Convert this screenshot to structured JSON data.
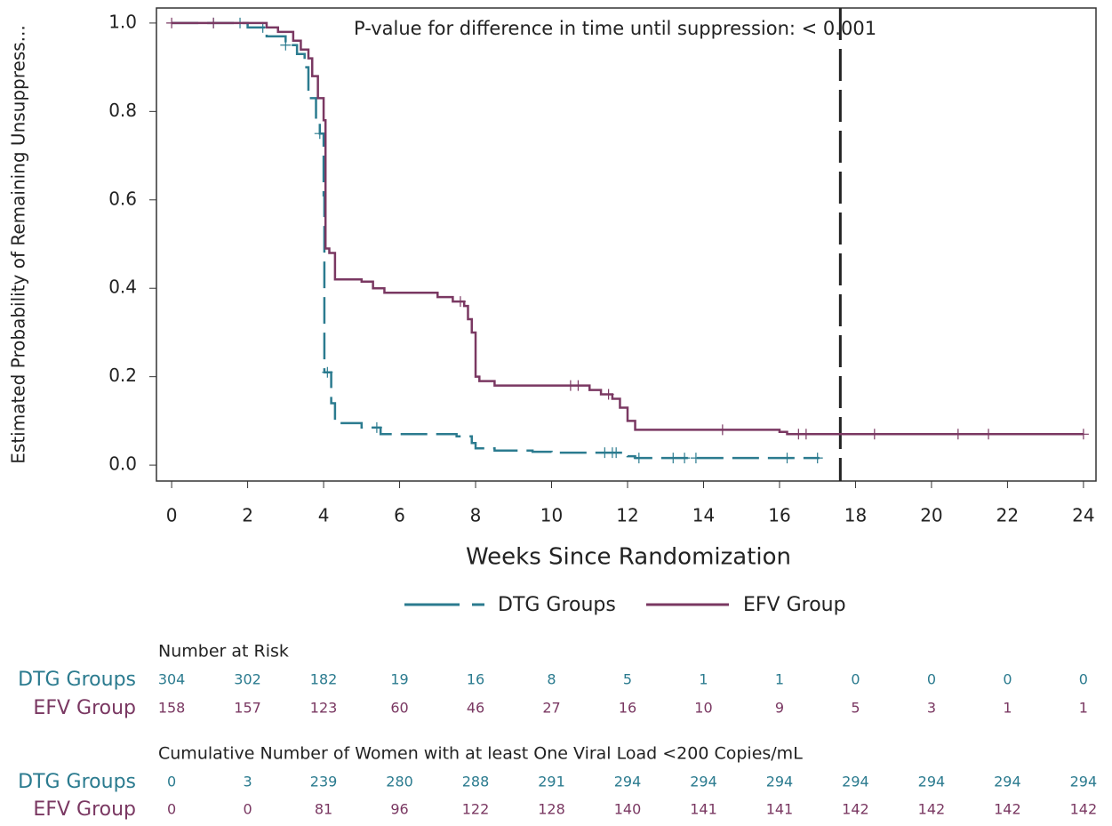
{
  "chart_data": {
    "type": "step",
    "ylabel": "Estimated Probability of Remaining Unsuppress...",
    "xlabel": "Weeks Since Randomization",
    "annotation": "P-value for difference in time until suppression: < 0.001",
    "ref_line_x": 17.6,
    "xlim": [
      -0.4,
      24.33
    ],
    "ylim": [
      -0.036,
      1.034
    ],
    "xticks": [
      0,
      2,
      4,
      6,
      8,
      10,
      12,
      14,
      16,
      18,
      20,
      22,
      24
    ],
    "yticks": [
      {
        "value": 0,
        "label": "0.0"
      },
      {
        "value": 0.2,
        "label": "0.2"
      },
      {
        "value": 0.4,
        "label": "0.4"
      },
      {
        "value": 0.6,
        "label": "0.6"
      },
      {
        "value": 0.8,
        "label": "0.8"
      },
      {
        "value": 1,
        "label": "1.0"
      }
    ],
    "series": [
      {
        "name": "DTG Groups",
        "color": "#2b7b8f",
        "dashed": true,
        "x": [
          0,
          2,
          2.5,
          3,
          3.3,
          3.5,
          3.6,
          3.8,
          3.9,
          4.0,
          4.02,
          4.2,
          4.3,
          5,
          5.5,
          7.5,
          7.9,
          8,
          8.5,
          9.5,
          10,
          12,
          12.2,
          17.05
        ],
        "values": [
          1.0,
          0.99,
          0.97,
          0.95,
          0.93,
          0.9,
          0.83,
          0.78,
          0.75,
          0.61,
          0.21,
          0.14,
          0.095,
          0.085,
          0.07,
          0.065,
          0.05,
          0.038,
          0.033,
          0.03,
          0.028,
          0.02,
          0.016,
          0.016
        ],
        "censored": [
          1.1,
          1.8,
          2.4,
          3.0,
          3.9,
          4.1,
          5.4,
          11.4,
          11.6,
          11.7,
          12.3,
          13.2,
          13.5,
          13.8,
          16.2,
          17
        ]
      },
      {
        "name": "EFV Group",
        "color": "#7a3862",
        "dashed": false,
        "x": [
          0,
          2.5,
          2.8,
          3.2,
          3.4,
          3.6,
          3.7,
          3.85,
          4.0,
          4.05,
          4.15,
          4.3,
          5,
          5.3,
          5.6,
          7,
          7.4,
          7.7,
          7.8,
          7.9,
          8,
          8.1,
          8.5,
          10.3,
          11,
          11.3,
          11.6,
          11.8,
          12,
          12.2,
          16,
          16.2,
          24
        ],
        "values": [
          1.0,
          0.99,
          0.98,
          0.96,
          0.94,
          0.92,
          0.88,
          0.83,
          0.78,
          0.49,
          0.48,
          0.42,
          0.415,
          0.4,
          0.39,
          0.38,
          0.37,
          0.36,
          0.33,
          0.3,
          0.2,
          0.19,
          0.18,
          0.18,
          0.17,
          0.16,
          0.15,
          0.13,
          0.1,
          0.08,
          0.075,
          0.07,
          0.07
        ],
        "censored": [
          0,
          1.1,
          7.6,
          10.5,
          10.7,
          11.5,
          14.5,
          16.5,
          16.7,
          18.5,
          20.7,
          21.5,
          24
        ]
      }
    ],
    "tables": [
      {
        "title": "Number at Risk",
        "rows": [
          {
            "label": "DTG Groups",
            "values": [
              304,
              302,
              182,
              19,
              16,
              8,
              5,
              1,
              1,
              0,
              0,
              0,
              0
            ]
          },
          {
            "label": "EFV Group",
            "values": [
              158,
              157,
              123,
              60,
              46,
              27,
              16,
              10,
              9,
              5,
              3,
              1,
              1
            ]
          }
        ]
      },
      {
        "title": "Cumulative Number of Women with at least One Viral Load <200 Copies/mL",
        "rows": [
          {
            "label": "DTG Groups",
            "values": [
              0,
              3,
              239,
              280,
              288,
              291,
              294,
              294,
              294,
              294,
              294,
              294,
              294
            ]
          },
          {
            "label": "EFV Group",
            "values": [
              0,
              0,
              81,
              96,
              122,
              128,
              140,
              141,
              141,
              142,
              142,
              142,
              142
            ]
          }
        ]
      }
    ]
  }
}
